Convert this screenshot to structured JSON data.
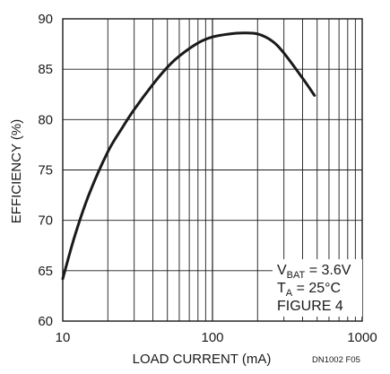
{
  "chart_data": {
    "type": "line",
    "xscale": "log",
    "xlim": [
      10,
      1000
    ],
    "ylim": [
      60,
      90
    ],
    "xlabel": "LOAD CURRENT (mA)",
    "ylabel": "EFFICIENCY (%)",
    "x_ticks": [
      10,
      100,
      1000
    ],
    "x_tick_labels": [
      "10",
      "100",
      "1000"
    ],
    "y_ticks": [
      60,
      65,
      70,
      75,
      80,
      85,
      90
    ],
    "y_tick_labels": [
      "60",
      "65",
      "70",
      "75",
      "80",
      "85",
      "90"
    ],
    "grid": true,
    "series": [
      {
        "color": "#1a1a1a",
        "x": [
          10,
          12,
          15,
          20,
          25,
          30,
          40,
          50,
          60,
          80,
          100,
          130,
          160,
          200,
          250,
          300,
          400,
          480
        ],
        "y": [
          64.2,
          68.4,
          72.6,
          76.8,
          79.2,
          81.0,
          83.5,
          85.2,
          86.3,
          87.6,
          88.2,
          88.5,
          88.6,
          88.5,
          87.8,
          86.6,
          84.1,
          82.4
        ]
      }
    ],
    "annotations": {
      "vbat_main": "V",
      "vbat_sub": "BAT",
      "vbat_rest": " = 3.6V",
      "ta_main": "T",
      "ta_sub": "A",
      "ta_rest": " = 25°C",
      "figure": "FIGURE 4"
    },
    "code": "DN1002 F05"
  }
}
